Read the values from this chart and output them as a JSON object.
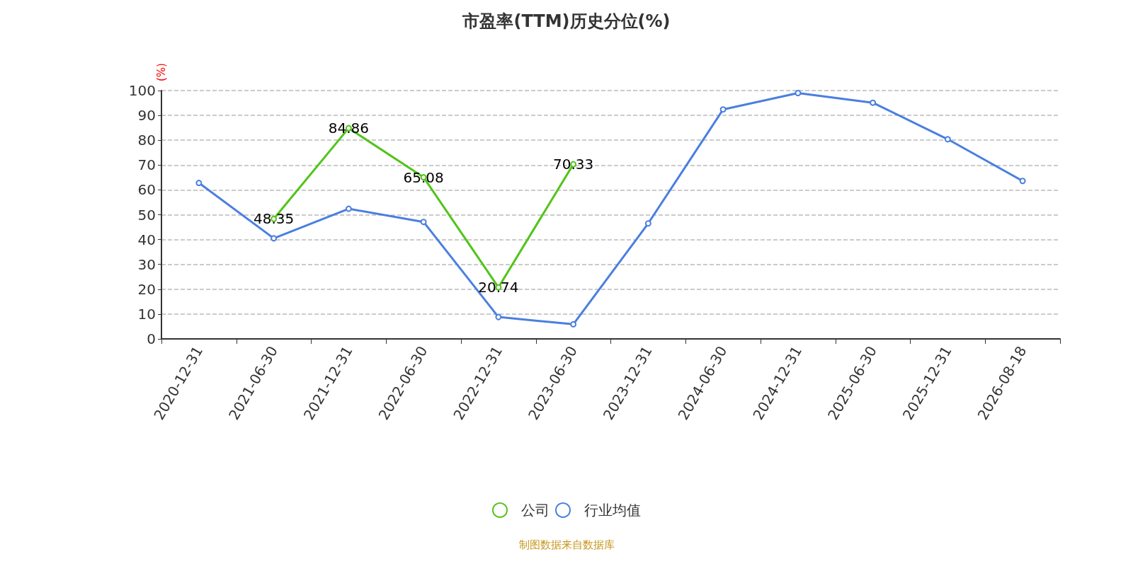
{
  "chart_data": {
    "type": "line",
    "title": "市盈率(TTM)历史分位(%)",
    "ylabel": "(%)",
    "annotations": [
      "制图数据来自数据库"
    ],
    "categories": [
      "2020-12-31",
      "2021-06-30",
      "2021-12-31",
      "2022-06-30",
      "2022-12-31",
      "2023-06-30",
      "2023-12-31",
      "2024-06-30",
      "2024-12-31",
      "2025-06-30",
      "2025-12-31",
      "2026-08-18"
    ],
    "series": [
      {
        "name": "公司",
        "color": "#52c41a",
        "values": [
          null,
          48.35,
          84.86,
          65.08,
          20.74,
          70.33,
          null,
          null,
          null,
          null,
          null,
          null
        ],
        "value_labels": [
          null,
          "48.35",
          "84.86",
          "65.08",
          "20.74",
          "70.33",
          null,
          null,
          null,
          null,
          null,
          null
        ]
      },
      {
        "name": "行业均值",
        "color": "#4a7fe0",
        "values": [
          62.8,
          40.5,
          52.4,
          47.1,
          8.8,
          5.9,
          46.5,
          92.4,
          99.0,
          95.1,
          80.4,
          63.6
        ]
      }
    ],
    "ylim": [
      0,
      100
    ],
    "yticks": [
      0,
      10,
      20,
      30,
      40,
      50,
      60,
      70,
      80,
      90,
      100
    ],
    "grid": "y",
    "legend": "bottom",
    "marker": "circle",
    "line_style": "solid"
  }
}
